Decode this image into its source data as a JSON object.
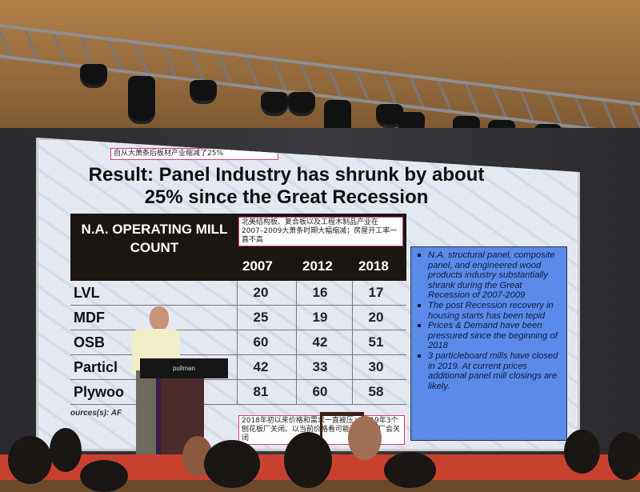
{
  "slide": {
    "chinese_note_title": "自从大萧条后板材产业缩减了25%",
    "title": "Result: Panel Industry has shrunk by about 25% since the Great Recession",
    "chinese_note_1": "北美结构板、复合板以及工程木制品产业在2007–2009大萧条时期大幅缩减；房屋开工率一直不高",
    "chinese_note_2": "2018年初以来价格和需求一直被压；2019年3个刨花板厂关闭。以当前价格看可能更多板材厂会关闭",
    "table": {
      "header_label": "N.A. OPERATING MILL COUNT",
      "years": [
        "2007",
        "2012",
        "2018"
      ],
      "rows": [
        {
          "name": "LVL",
          "values": [
            "20",
            "16",
            "17"
          ]
        },
        {
          "name": "MDF",
          "values": [
            "25",
            "19",
            "20"
          ]
        },
        {
          "name": "OSB",
          "values": [
            "60",
            "42",
            "51"
          ]
        },
        {
          "name": "Particl",
          "values": [
            "42",
            "33",
            "30"
          ]
        },
        {
          "name": "Plywoo      ft)",
          "values": [
            "81",
            "60",
            "58"
          ]
        }
      ]
    },
    "bullets": [
      "N.A. structural panel, composite panel, and engineered wood products industry substantially shrank during the Great Recession of 2007-2009",
      "The post Recession recovery in housing starts has been tepid",
      "Prices & Demand have been pressured since the beginning of 2018",
      "3 particleboard mills have closed in 2019. At current prices additional panel mill closings are likely."
    ],
    "source": "ources(s): AF            or estimates",
    "colors": {
      "bullet_box": "#5b8ae8",
      "table_header": "#1c1613",
      "note_border": "#d63a7a"
    }
  },
  "podium": {
    "logo": "pullman"
  }
}
